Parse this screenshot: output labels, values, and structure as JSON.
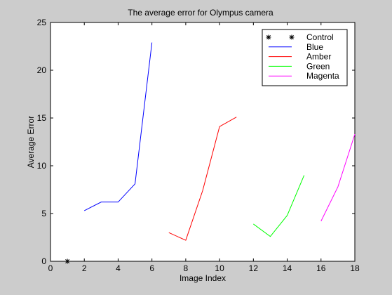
{
  "chart_data": {
    "type": "line",
    "title": "The average error for Olympus camera",
    "xlabel": "Image Index",
    "ylabel": "Average Error",
    "xlim": [
      0,
      18
    ],
    "ylim": [
      0,
      25
    ],
    "xticks": [
      0,
      2,
      4,
      6,
      8,
      10,
      12,
      14,
      16,
      18
    ],
    "yticks": [
      0,
      5,
      10,
      15,
      20,
      25
    ],
    "grid": false,
    "legend_position": "top-right",
    "background_color": "#cccccc",
    "plot_background_color": "#ffffff",
    "series": [
      {
        "name": "Control",
        "color": "#000000",
        "marker": "*",
        "line": false,
        "x": [
          1
        ],
        "y": [
          0
        ]
      },
      {
        "name": "Blue",
        "color": "#0000ff",
        "x": [
          2,
          3,
          4,
          5,
          6
        ],
        "y": [
          5.3,
          6.2,
          6.2,
          8.1,
          22.9
        ]
      },
      {
        "name": "Amber",
        "color": "#ff0000",
        "x": [
          7,
          8,
          9,
          10,
          11
        ],
        "y": [
          3.0,
          2.2,
          7.4,
          14.1,
          15.1
        ]
      },
      {
        "name": "Green",
        "color": "#00ff00",
        "x": [
          12,
          13,
          14,
          15
        ],
        "y": [
          3.9,
          2.6,
          4.8,
          9.0
        ]
      },
      {
        "name": "Magenta",
        "color": "#ff00ff",
        "x": [
          16,
          17,
          18
        ],
        "y": [
          4.2,
          7.8,
          13.3
        ]
      }
    ]
  }
}
